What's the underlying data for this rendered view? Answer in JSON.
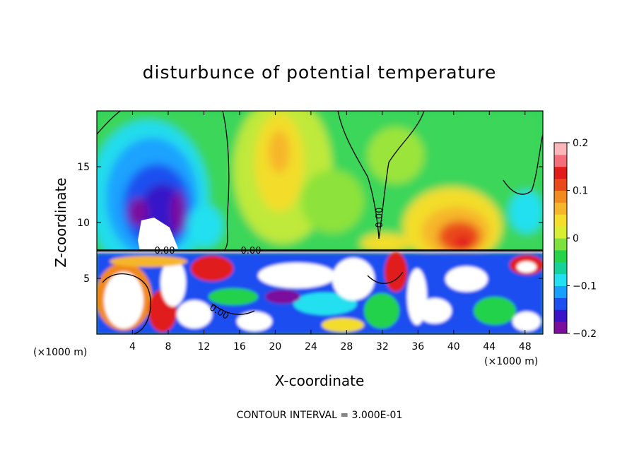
{
  "chart_data": {
    "type": "heatmap",
    "title": "disturbunce of potential temperature",
    "xlabel": "X-coordinate",
    "ylabel": "Z-coordinate",
    "x_unit_label": "(×1000 m)",
    "x_unit_label_right": "(×1000 m)",
    "xlim": [
      0,
      50
    ],
    "ylim": [
      0,
      20
    ],
    "x_ticks": [
      "4",
      "8",
      "12",
      "16",
      "20",
      "24",
      "28",
      "32",
      "36",
      "40",
      "44",
      "48"
    ],
    "x_tick_values": [
      4,
      8,
      12,
      16,
      20,
      24,
      28,
      32,
      36,
      40,
      44,
      48
    ],
    "y_ticks": [
      "5",
      "10",
      "15"
    ],
    "y_tick_values": [
      5,
      10,
      15
    ],
    "colorbar": {
      "min": -0.2,
      "max": 0.2,
      "labels": [
        "0.2",
        "0.1",
        "0",
        "−0.1",
        "−0.2"
      ],
      "label_values": [
        0.2,
        0.1,
        0,
        -0.1,
        -0.2
      ],
      "colors": [
        "#7b0f9d",
        "#3a13c9",
        "#1c4ef0",
        "#18a0ff",
        "#22e0f0",
        "#14d29a",
        "#24d24b",
        "#7ee03c",
        "#d8ee33",
        "#f5de2b",
        "#f6b62a",
        "#f18a1f",
        "#ea4a1b",
        "#e11a1a",
        "#f36d7a",
        "#fab6b8"
      ]
    },
    "contour_labels": [
      "0.00",
      "0.00",
      "0.00",
      "0.00"
    ],
    "contour_interval_text": "CONTOUR INTERVAL = 3.000E-01",
    "features": [
      {
        "name": "cold anomaly (upper left)",
        "x": 6.5,
        "z": 12,
        "value": -0.18
      },
      {
        "name": "warm anomaly (upper center)",
        "x": 20,
        "z": 16,
        "value": 0.08
      },
      {
        "name": "warm anomaly (upper right)",
        "x": 40,
        "z": 10,
        "value": 0.14
      },
      {
        "name": "inversion layer",
        "z": 7.2
      }
    ]
  }
}
